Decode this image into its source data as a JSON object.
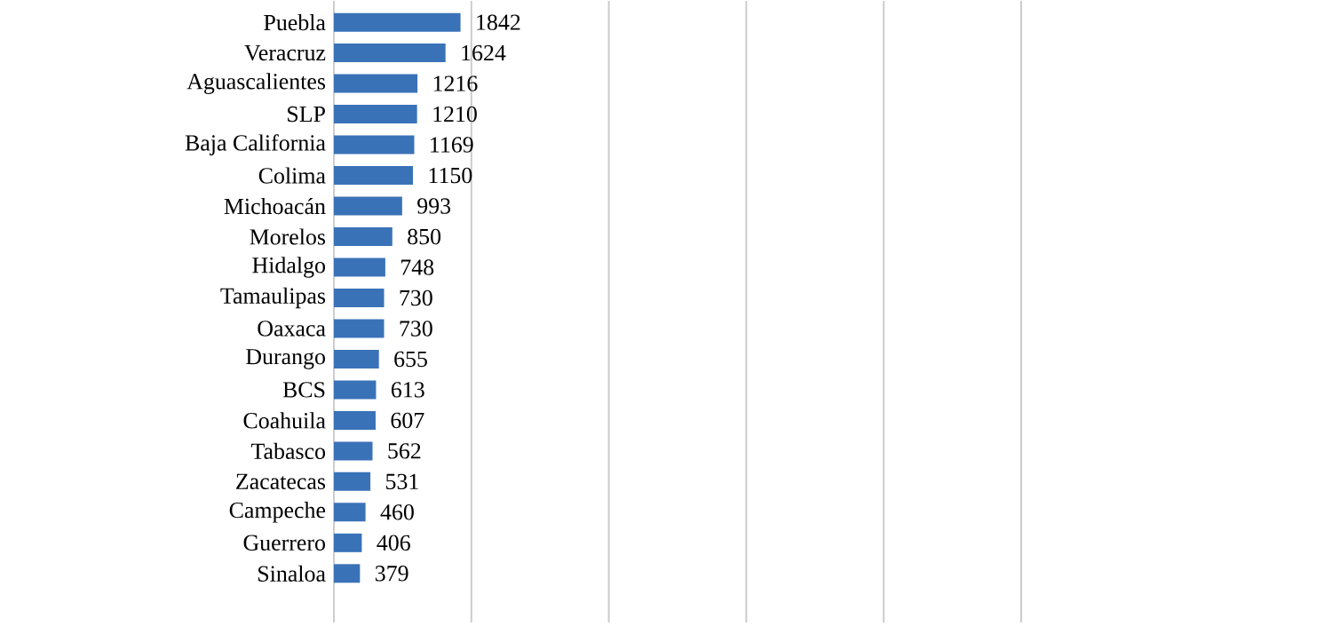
{
  "chart_data": {
    "type": "bar",
    "orientation": "horizontal",
    "color": "#3a72b8",
    "categories": [
      "Puebla",
      "Veracruz",
      "Aguascalientes",
      "SLP",
      "Baja California",
      "Colima",
      "Michoacán",
      "Morelos",
      "Hidalgo",
      "Tamaulipas",
      "Oaxaca",
      "Durango",
      "BCS",
      "Coahuila",
      "Tabasco",
      "Zacatecas",
      "Campeche",
      "Guerrero",
      "Sinaloa"
    ],
    "values": [
      1842,
      1624,
      1216,
      1210,
      1169,
      1150,
      993,
      850,
      748,
      730,
      730,
      655,
      613,
      607,
      562,
      531,
      460,
      406,
      379
    ],
    "value_labels": [
      "1842",
      "1624",
      "1216",
      "1210",
      "1169",
      "1150",
      "993",
      "850",
      "748",
      "730",
      "730",
      "655",
      "613",
      "607",
      "562",
      "531",
      "460",
      "406",
      "379"
    ],
    "xlim": [
      0,
      10000
    ],
    "xticks": [
      {
        "value": 0,
        "label": null
      },
      {
        "value": 2000,
        "label": null
      },
      {
        "value": 4000,
        "label": null
      },
      {
        "value": 6000,
        "label": null
      },
      {
        "value": 8000,
        "label": null
      },
      {
        "value": 10000,
        "label": null
      }
    ],
    "grid": "x"
  }
}
